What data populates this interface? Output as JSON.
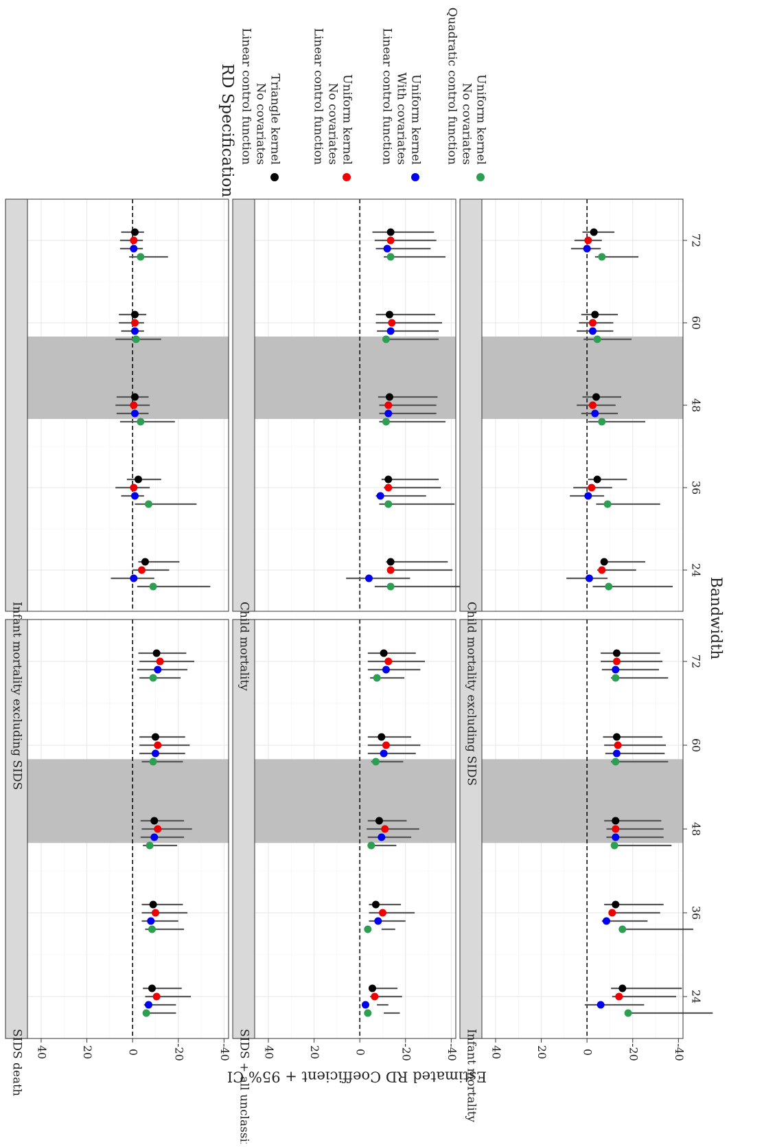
{
  "chart_data": {
    "type": "scatter",
    "orientation": "rotated-90-clockwise",
    "xlabel": "Bandwidth",
    "ylabel": "Estimated RD Coefficient + 95% CI",
    "x_ticks": [
      "24",
      "36",
      "48",
      "60",
      "72"
    ],
    "y_ticks": [
      "40",
      "20",
      "0",
      "-20",
      "-40"
    ],
    "ylim": [
      -42,
      46
    ],
    "xlim": [
      18,
      78
    ],
    "shaded_band": [
      46,
      58
    ],
    "reference_line": 0,
    "legend": {
      "title": "RD Specification",
      "placement": "right",
      "entries": [
        {
          "color": "#000000",
          "lines": [
            "Linear control function",
            "No covariates",
            "Triangle kernel"
          ]
        },
        {
          "color": "#ee0000",
          "lines": [
            "Linear control function",
            "No covariates",
            "Uniform kernel"
          ]
        },
        {
          "color": "#0000ee",
          "lines": [
            "Linear control function",
            "With covariates",
            "Uniform kernel"
          ]
        },
        {
          "color": "#2e9e52",
          "lines": [
            "Quadratic control function",
            "No covariates",
            "Uniform kernel"
          ]
        }
      ]
    },
    "panels": [
      {
        "title": "SIDS death",
        "points": [
          [
            [
              -8.5,
              4,
              13
            ],
            [
              -10.5,
              5,
              15
            ],
            [
              -7,
              2,
              12
            ],
            [
              -6,
              1,
              13
            ]
          ],
          [
            [
              -9,
              5,
              13
            ],
            [
              -10,
              6,
              14
            ],
            [
              -8,
              4,
              12
            ],
            [
              -8.5,
              3,
              14
            ]
          ],
          [
            [
              -9.5,
              6,
              13
            ],
            [
              -11,
              7,
              15
            ],
            [
              -9.5,
              6,
              13
            ],
            [
              -7.5,
              3,
              12
            ]
          ],
          [
            [
              -10,
              7,
              13
            ],
            [
              -11,
              8,
              14
            ],
            [
              -10,
              7,
              13
            ],
            [
              -9,
              5,
              13
            ]
          ],
          [
            [
              -10.5,
              8,
              13
            ],
            [
              -12,
              9,
              15
            ],
            [
              -11,
              9,
              13
            ],
            [
              -9,
              6,
              12
            ]
          ]
        ]
      },
      {
        "title": "SIDS + all unclassified death",
        "points": [
          [
            [
              -5.5,
              1,
              11
            ],
            [
              -6.5,
              2,
              12
            ],
            [
              -2.5,
              -5,
              10
            ],
            [
              -3.5,
              -7,
              14
            ]
          ],
          [
            [
              -7,
              3,
              11
            ],
            [
              -10,
              6,
              14
            ],
            [
              -8,
              4,
              12
            ],
            [
              -3.5,
              -6,
              12
            ]
          ],
          [
            [
              -8.5,
              5,
              12
            ],
            [
              -11,
              8,
              15
            ],
            [
              -9.5,
              6,
              13
            ],
            [
              -5,
              -1,
              11
            ]
          ],
          [
            [
              -9.5,
              6,
              13
            ],
            [
              -11.5,
              8,
              15
            ],
            [
              -10.5,
              7,
              14
            ],
            [
              -7,
              2,
              12
            ]
          ],
          [
            [
              -10.5,
              7,
              14
            ],
            [
              -12.5,
              9,
              16
            ],
            [
              -11.5,
              8,
              15
            ],
            [
              -7.5,
              3,
              12
            ]
          ]
        ]
      },
      {
        "title": "Infant mortality",
        "points": [
          [
            [
              -15.5,
              5,
              26
            ],
            [
              -14,
              3,
              25
            ],
            [
              -6,
              7,
              19
            ],
            [
              -18,
              1,
              37
            ]
          ],
          [
            [
              -12.5,
              5,
              21
            ],
            [
              -11,
              1,
              21
            ],
            [
              -8.5,
              2,
              18
            ],
            [
              -15.5,
              1,
              31
            ]
          ],
          [
            [
              -12.5,
              5,
              20
            ],
            [
              -12.5,
              4,
              21
            ],
            [
              -12.5,
              4,
              21
            ],
            [
              -12,
              0,
              25
            ]
          ],
          [
            [
              -13,
              6,
              20
            ],
            [
              -13.5,
              6,
              21
            ],
            [
              -13,
              5,
              21
            ],
            [
              -12.5,
              2,
              23
            ]
          ],
          [
            [
              -13,
              7,
              19
            ],
            [
              -13,
              7,
              20
            ],
            [
              -12.5,
              6,
              19
            ],
            [
              -12.5,
              2,
              23
            ]
          ]
        ]
      },
      {
        "title": "Infant mortality excluding SIDS",
        "points": [
          [
            [
              -5.5,
              3,
              15
            ],
            [
              -4,
              4,
              12
            ],
            [
              -0.5,
              10,
              9
            ],
            [
              -9,
              7,
              25
            ]
          ],
          [
            [
              -2.5,
              5,
              10
            ],
            [
              -0.5,
              8,
              7
            ],
            [
              -1,
              6,
              4
            ],
            [
              -7,
              6,
              21
            ]
          ],
          [
            [
              -1,
              8,
              6
            ],
            [
              -0.5,
              8,
              7
            ],
            [
              -1,
              8,
              6
            ],
            [
              -3.5,
              9,
              15
            ]
          ],
          [
            [
              -1,
              7,
              5
            ],
            [
              -1,
              7,
              4
            ],
            [
              -1,
              6,
              4
            ],
            [
              -1.5,
              9,
              11
            ]
          ],
          [
            [
              -1,
              6,
              4
            ],
            [
              -0.5,
              6,
              4
            ],
            [
              -0.5,
              6,
              4
            ],
            [
              -3.5,
              5,
              12
            ]
          ]
        ]
      },
      {
        "title": "Child mortality",
        "points": [
          [
            [
              -13.5,
              2,
              25
            ],
            [
              -13.5,
              0,
              27
            ],
            [
              -4,
              10,
              18
            ],
            [
              -13.5,
              7,
              34
            ]
          ],
          [
            [
              -12.5,
              3,
              22
            ],
            [
              -12.5,
              2,
              23
            ],
            [
              -9,
              2,
              20
            ],
            [
              -12.5,
              4,
              29
            ]
          ],
          [
            [
              -13,
              5,
              21
            ],
            [
              -12.5,
              4,
              21
            ],
            [
              -12.5,
              4,
              21
            ],
            [
              -11.5,
              3,
              26
            ]
          ],
          [
            [
              -13,
              6,
              20
            ],
            [
              -14,
              7,
              22
            ],
            [
              -13.5,
              6,
              21
            ],
            [
              -11.5,
              0,
              23
            ]
          ],
          [
            [
              -13.5,
              8,
              19
            ],
            [
              -13.5,
              7,
              20
            ],
            [
              -12,
              5,
              19
            ],
            [
              -13.5,
              3,
              24
            ]
          ]
        ]
      },
      {
        "title": "Child mortality excluding SIDS",
        "points": [
          [
            [
              -7.5,
              1,
              18
            ],
            [
              -6.5,
              2,
              15
            ],
            [
              -1,
              10,
              8
            ],
            [
              -9.5,
              7,
              28
            ]
          ],
          [
            [
              -4.5,
              4,
              13
            ],
            [
              -2,
              8,
              9
            ],
            [
              -0.5,
              8,
              7
            ],
            [
              -9,
              5,
              23
            ]
          ],
          [
            [
              -4,
              6,
              11
            ],
            [
              -2.5,
              7,
              10
            ],
            [
              -3.5,
              6,
              10
            ],
            [
              -6.5,
              6,
              19
            ]
          ],
          [
            [
              -3.5,
              6,
              10
            ],
            [
              -2.5,
              6,
              9
            ],
            [
              -2.5,
              7,
              9
            ],
            [
              -4.5,
              6,
              15
            ]
          ],
          [
            [
              -3,
              5,
              9
            ],
            [
              -0.5,
              6,
              6
            ],
            [
              0,
              7,
              6
            ],
            [
              -6.5,
              3,
              16
            ]
          ]
        ]
      }
    ]
  }
}
